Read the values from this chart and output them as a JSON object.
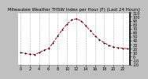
{
  "title": "Milwaukee Weather THSW Index per Hour (F) (Last 24 Hours)",
  "background_color": "#c0c0c0",
  "plot_bg_color": "#ffffff",
  "line_color": "#cc0000",
  "marker_color": "#000000",
  "grid_color": "#aaaaaa",
  "text_color": "#000000",
  "right_border_color": "#000000",
  "hours": [
    0,
    1,
    2,
    3,
    4,
    5,
    6,
    7,
    8,
    9,
    10,
    11,
    12,
    13,
    14,
    15,
    16,
    17,
    18,
    19,
    20,
    21,
    22,
    23
  ],
  "values": [
    10,
    8,
    6,
    5,
    10,
    16,
    20,
    35,
    52,
    68,
    82,
    92,
    95,
    90,
    78,
    65,
    52,
    42,
    35,
    28,
    24,
    22,
    21,
    20
  ],
  "ylim": [
    -20,
    110
  ],
  "yticks": [
    110,
    100,
    90,
    80,
    70,
    60,
    50,
    40,
    30,
    20,
    10,
    0,
    -10,
    -20
  ],
  "ytick_labels": [
    "110",
    "100",
    "90",
    "80",
    "70",
    "60",
    "50",
    "40",
    "30",
    "20",
    "10",
    "0",
    "-10",
    "-20"
  ],
  "xtick_step": 2,
  "title_fontsize": 4,
  "tick_fontsize": 3.5,
  "linewidth": 0.7,
  "markersize": 1.8
}
